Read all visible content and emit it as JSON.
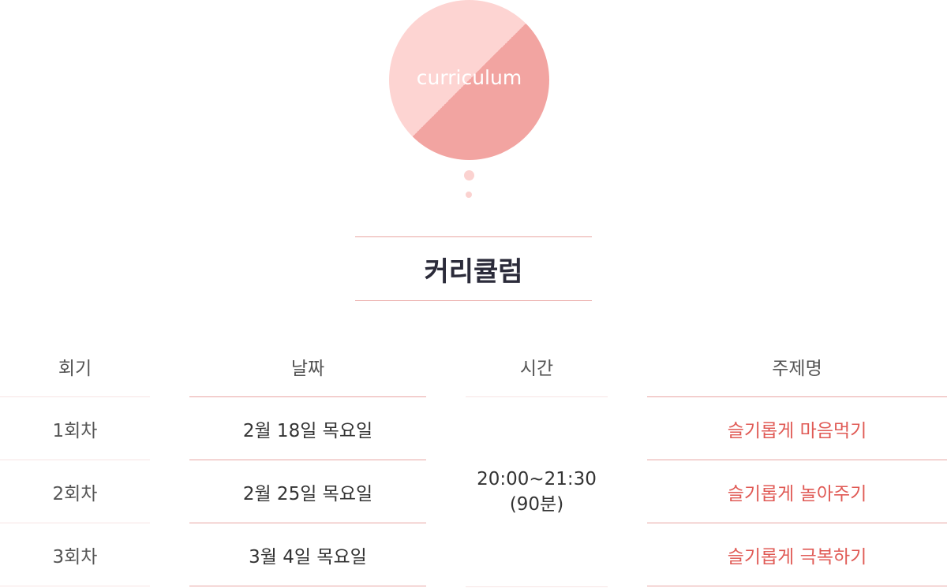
{
  "badge": {
    "label": "curriculum"
  },
  "title": "커리큘럼",
  "table": {
    "headers": {
      "round": "회기",
      "date": "날짜",
      "time": "시간",
      "topic": "주제명"
    },
    "rows": [
      {
        "round": "1회차",
        "date": "2월 18일 목요일",
        "topic": "슬기롭게 마음먹기"
      },
      {
        "round": "2회차",
        "date": "2월 25일 목요일",
        "topic": "슬기롭게 놀아주기"
      },
      {
        "round": "3회차",
        "date": "3월 4일 목요일",
        "topic": "슬기롭게 극복하기"
      }
    ],
    "time": {
      "range": "20:00~21:30",
      "duration": "(90분)"
    }
  },
  "colors": {
    "badge_light": "#fdd4d2",
    "badge_dark": "#f2a4a1",
    "accent_line": "#e8a5a3",
    "topic_text": "#e05a55"
  }
}
